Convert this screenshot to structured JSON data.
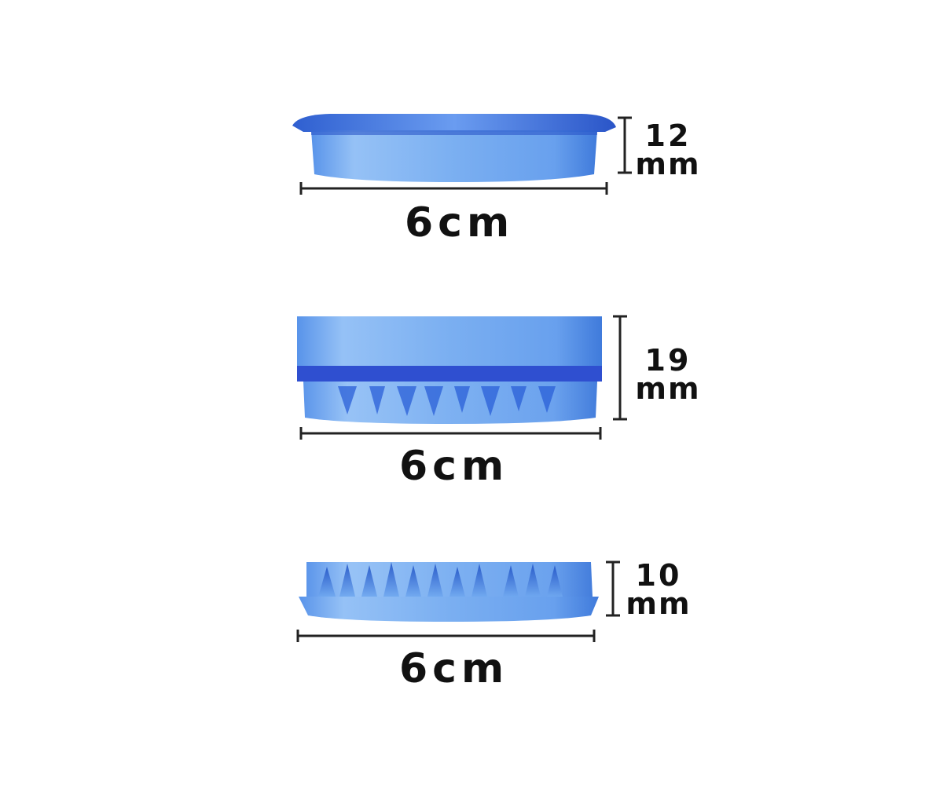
{
  "colors": {
    "background": "#ffffff",
    "plastic_light": "#6fa8f0",
    "plastic_mid": "#3d7fe0",
    "plastic_dark": "#1d4fc4",
    "rim_band": "#2f4fd0",
    "dimension_line": "#222222",
    "text": "#111111"
  },
  "pieces": [
    {
      "name": "lid",
      "width_label": "6cm",
      "height_value": "12",
      "height_unit": "mm"
    },
    {
      "name": "middle-chamber",
      "width_label": "6cm",
      "height_value": "19",
      "height_unit": "mm"
    },
    {
      "name": "bottom-teeth-plate",
      "width_label": "6cm",
      "height_value": "10",
      "height_unit": "mm"
    }
  ]
}
